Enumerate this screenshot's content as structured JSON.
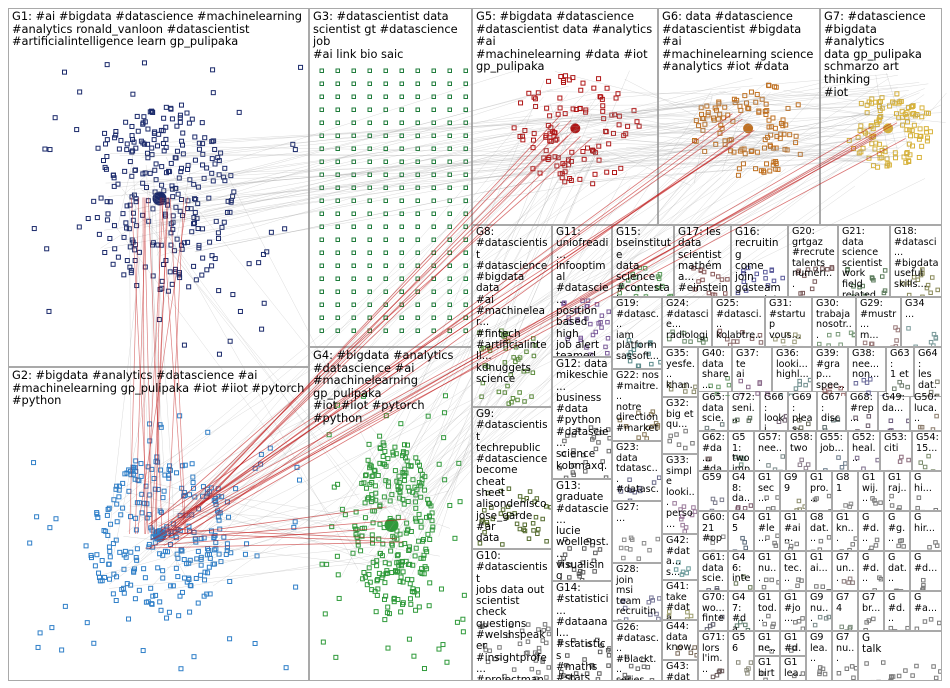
{
  "groups": [
    {
      "id": "G1",
      "label": "G1: #ai #bigdata #datascience #machinelearning\n#analytics ronald_vanloon #datascientist\n#artificialintelligence learn gp_pulipaka",
      "color": "#1b2a6b"
    },
    {
      "id": "G2",
      "label": "G2: #bigdata #analytics #datascience #ai\n#machinelearning gp_pulipaka #iot #iiot #pytorch\n#python",
      "color": "#2f7fc8"
    },
    {
      "id": "G3",
      "label": "G3: #datascientist data\nscientist gt #datascience job\n#ai link bio saic",
      "color": "#1e7b3a"
    },
    {
      "id": "G4",
      "label": "G4: #bigdata #analytics\n#datascience #ai\n#machinelearning gp_pulipaka\n#iot #iiot #pytorch #python",
      "color": "#2f9a3a"
    },
    {
      "id": "G5",
      "label": "G5: #bigdata #datascience\n#datascientist data #analytics #ai\n#machinelearning #data #iot\ngp_pulipaka",
      "color": "#b01515"
    },
    {
      "id": "G6",
      "label": "G6: data #datascience\n#datascientist #bigdata #ai\n#machinelearning science\n#analytics #iot #data",
      "color": "#c07020"
    },
    {
      "id": "G7",
      "label": "G7: #datascience\n#bigdata #analytics\ndata gp_pulipaka\nschmarzo art thinking\n#iot",
      "color": "#d7b23a"
    },
    {
      "id": "G8",
      "label": "G8:\n#datascientist\n#datascience\n#bigdata data\n#ai\n#machinelear...\n#fintech\n#artificialintell...\nkdnuggets\nscience",
      "color": "#5a8a3a"
    },
    {
      "id": "G9",
      "label": "G9:\n#datascientist\ntechrepublic\n#datascience\nbecome cheat\nsheet\nalisondenisco\njose_garde #ar\ndata",
      "color": "#556b2f"
    },
    {
      "id": "G10",
      "label": "G10:\n#datascientist\njobs data out\nscientist check\nquestions\n#welshspeaker\n#insightprofe...\n#projectmana...",
      "color": "#7a7a7a"
    },
    {
      "id": "G11",
      "label": "G11:\nuniofreadi...\ninfooptimal\n#datascie...\nposition\nbased high\njob alert\nteamed up",
      "color": "#7a5a9a"
    },
    {
      "id": "G12",
      "label": "G12: data\nmikeschie...\nbusiness\n#data\n#python\n#datascie...\nscience\nkobmaxq...",
      "color": "#6a6a6a"
    },
    {
      "id": "G13",
      "label": "G13:\ngraduate\n#datascie...\nlucie\nwoellenst...\nvisualising\nbritain's...",
      "color": "#5a5a5a"
    },
    {
      "id": "G14",
      "label": "G14:\n#statistici...\n#dataanal...\n#statistics\n#maths\n#stats\n#econom...",
      "color": "#5a5a5a"
    },
    {
      "id": "G15",
      "label": "G15:\nbseinstitute\ndata\nscience\n#contestal...",
      "color": "#5a9a5a"
    },
    {
      "id": "G16",
      "label": "G16:\nrecruiting\ncome join\ngdsteam\nassociate...",
      "color": "#5a5a9a"
    },
    {
      "id": "G17",
      "label": "G17: les\ndata\nscientist\nmathéma...\n#einstein...",
      "color": "#8a5a5a"
    },
    {
      "id": "G18",
      "label": "G18:\n#datasci...\n#bigdata\nuseful\nskills...",
      "color": "#8a8a5a"
    },
    {
      "id": "G19",
      "label": "G19:\n#datasc...\niam\nplatform\nsassoft...",
      "color": "#5a8a8a"
    },
    {
      "id": "G20",
      "label": "G20:\ngrtgaz\n#recrute\ntalents\nnuméri...",
      "color": "#7a5a5a"
    },
    {
      "id": "G21",
      "label": "G21: data\nscience\nscientist\nwork field\nrelated...",
      "color": "#5a7a5a"
    },
    {
      "id": "G22",
      "label": "G22: nos\n#maitre...\nnotre\ndirection\n#market...",
      "color": "#8a7a5a"
    },
    {
      "id": "G23",
      "label": "G23:\ndata\ntdatasc...\n#datasc...",
      "color": "#6a6a8a"
    },
    {
      "id": "G24",
      "label": "G24:\n#datascie...\nradiologi...",
      "color": "#6a8a6a"
    },
    {
      "id": "G25",
      "label": "G25:\n#datasci...\nkolabtre...",
      "color": "#8a6a6a"
    },
    {
      "id": "G26",
      "label": "G26:\n#datasc...\n#blackt...\nseries...",
      "color": "#6a6a6a"
    },
    {
      "id": "G27",
      "label": "G27:\n...",
      "color": "#8a8a8a"
    },
    {
      "id": "G28",
      "label": "G28: join\nmsi team\nrecruiting\nphd...",
      "color": "#7a7a9a"
    },
    {
      "id": "G29",
      "label": "G29:\n#mustr...\nm...",
      "color": "#9a7a7a"
    },
    {
      "id": "G30",
      "label": "G30:\ntrabaja\nnosotr...",
      "color": "#7a9a7a"
    },
    {
      "id": "G31",
      "label": "G31:\n#startup\nvous...",
      "color": "#9a9a7a"
    },
    {
      "id": "G32",
      "label": "G32:\nbig et\nqu...",
      "color": "#7a7a7a"
    },
    {
      "id": "G33",
      "label": "G33:\nsimple\nlooki...\nperso...",
      "color": "#9a7a9a"
    },
    {
      "id": "G34",
      "label": "G34\n...",
      "color": "#7a9a9a"
    },
    {
      "id": "G35",
      "label": "G35:\nyesfe...\nkhan...",
      "color": "#8a8a6a"
    },
    {
      "id": "G36",
      "label": "G36:\nlooki...\nhighl...",
      "color": "#6a8a8a"
    },
    {
      "id": "G37",
      "label": "G37:\nte\nai",
      "color": "#8a6a8a"
    },
    {
      "id": "G38",
      "label": "G38:\nnee...\nnon...",
      "color": "#6a6a9a"
    },
    {
      "id": "G39",
      "label": "G39:\n#grap...\nspee...",
      "color": "#9a6a6a"
    },
    {
      "id": "G40",
      "label": "G40:\ndata\nshare...",
      "color": "#6a9a6a"
    },
    {
      "id": "G41",
      "label": "G41:\ntake\n#data...",
      "color": "#9a9a6a"
    },
    {
      "id": "G42",
      "label": "G42:\n#data...\ns...",
      "color": "#6a9a9a"
    },
    {
      "id": "G43",
      "label": "G43:\n#data...\ngrowt...",
      "color": "#9a6a9a"
    },
    {
      "id": "G44",
      "label": "G44:\ndata\nknow...",
      "color": "#7a6a5a"
    },
    {
      "id": "G45",
      "label": "G45",
      "color": "#5a6a7a"
    },
    {
      "id": "G46",
      "label": "G46:\ninte...\npls...",
      "color": "#6a7a5a"
    },
    {
      "id": "G47",
      "label": "G47:\n#da...\nrecl...",
      "color": "#5a7a6a"
    },
    {
      "id": "G48",
      "label": "G48:\nda...\nsci...",
      "color": "#7a5a6a"
    },
    {
      "id": "G49",
      "label": "G49:\nda...",
      "color": "#6a5a7a"
    },
    {
      "id": "G50",
      "label": "G50:\nluca...",
      "color": "#8a7a6a"
    },
    {
      "id": "G51",
      "label": "G51:\ntwo\nimp...",
      "color": "#6a8a7a"
    },
    {
      "id": "G52",
      "label": "G52:\nheal...",
      "color": "#7a6a8a"
    },
    {
      "id": "G53",
      "label": "G53:\nciti",
      "color": "#8a6a7a"
    },
    {
      "id": "G54",
      "label": "G54:\n15...",
      "color": "#7a8a6a"
    },
    {
      "id": "G55",
      "label": "G55:\njob...",
      "color": "#6a7a8a"
    },
    {
      "id": "G56",
      "label": "G56",
      "color": "#8a8a7a"
    },
    {
      "id": "G57",
      "label": "G57:\nnee...",
      "color": "#7a8a8a"
    },
    {
      "id": "G58",
      "label": "G58:\ntwo",
      "color": "#8a7a8a"
    },
    {
      "id": "G59",
      "label": "G59",
      "color": "#7a7a8a"
    },
    {
      "id": "G60",
      "label": "G60:\n21\n#op...",
      "color": "#8a8a8a"
    },
    {
      "id": "G61",
      "label": "G61:\ndata\nscie...",
      "color": "#6a6a7a"
    },
    {
      "id": "G62",
      "label": "G62:\n#da...\n#da...",
      "color": "#7a6a6a"
    },
    {
      "id": "G63",
      "label": "G63:\n1 et",
      "color": "#6a7a6a"
    },
    {
      "id": "G64",
      "label": "G64:\nles\ndat...",
      "color": "#7a7a6a"
    },
    {
      "id": "G65",
      "label": "G65:\ndata\nscie...",
      "color": "#6a7a7a"
    },
    {
      "id": "G66",
      "label": "G66:\nlooki...",
      "color": "#7a6a7a"
    },
    {
      "id": "G67",
      "label": "G67:\ndisc...",
      "color": "#5a6a6a"
    },
    {
      "id": "G68",
      "label": "G68:\n#rep...",
      "color": "#6a5a6a"
    },
    {
      "id": "G69",
      "label": "G69:\npleas...",
      "color": "#6a6a5a"
    },
    {
      "id": "G70",
      "label": "G70:\nwo...\nfinte...",
      "color": "#5a5a6a"
    },
    {
      "id": "G71",
      "label": "G71:\nlors\nl'im...",
      "color": "#6a5a5a"
    },
    {
      "id": "G72",
      "label": "G72:\nseni...",
      "color": "#5a6a5a"
    },
    {
      "id": "G74",
      "label": "G74",
      "color": "#7a8a7a"
    },
    {
      "id": "G7x",
      "label": "G7\nun...",
      "color": "#8a7a7a"
    },
    {
      "id": "G8x",
      "label": "G8\ndat...",
      "color": "#7a7a7a"
    },
    {
      "id": "G81",
      "label": "G81",
      "color": "#8a8a8a"
    },
    {
      "id": "G9x",
      "label": "G9\nnu...",
      "color": "#7a8a8a"
    },
    {
      "id": "G99",
      "label": "G99",
      "color": "#8a8a6a"
    },
    {
      "id": "S01",
      "label": "G1\nsec...",
      "color": "#7a7a7a"
    },
    {
      "id": "S02",
      "label": "G1\npro...",
      "color": "#7a7a7a"
    },
    {
      "id": "S03",
      "label": "G1\nwij...",
      "color": "#7a7a7a"
    },
    {
      "id": "S04",
      "label": "G1\nraj...",
      "color": "#7a7a7a"
    },
    {
      "id": "S05",
      "label": "G1\n#ai...",
      "color": "#7a7a7a"
    },
    {
      "id": "S06",
      "label": "G1\nkn...",
      "color": "#7a7a7a"
    },
    {
      "id": "S07",
      "label": "G1\n#le...",
      "color": "#7a7a7a"
    },
    {
      "id": "S08",
      "label": "G1\nnu...",
      "color": "#7a7a7a"
    },
    {
      "id": "S09",
      "label": "G1\ntec...",
      "color": "#7a7a7a"
    },
    {
      "id": "S10",
      "label": "G1\nai...",
      "color": "#7a7a7a"
    },
    {
      "id": "S11",
      "label": "G1\n#jo...",
      "color": "#7a7a7a"
    },
    {
      "id": "S12",
      "label": "G1\ntod...",
      "color": "#7a7a7a"
    },
    {
      "id": "S13",
      "label": "G1\n#d...",
      "color": "#7a7a7a"
    },
    {
      "id": "S14",
      "label": "G1\nne...",
      "color": "#7a7a7a"
    },
    {
      "id": "S15",
      "label": "G1\nlea...",
      "color": "#7a7a7a"
    },
    {
      "id": "S16",
      "label": "G1\nbirt...",
      "color": "#7a7a7a"
    },
    {
      "id": "S17",
      "label": "G9\nlea...",
      "color": "#7a7a7a"
    },
    {
      "id": "S18",
      "label": "G7\nbr...",
      "color": "#7a7a7a"
    },
    {
      "id": "S19",
      "label": "G7\nnu...",
      "color": "#7a7a7a"
    },
    {
      "id": "S20",
      "label": "G\n#d...",
      "color": "#7a7a7a"
    },
    {
      "id": "S21",
      "label": "G\n#a...",
      "color": "#7a7a7a"
    },
    {
      "id": "S22",
      "label": "G\ntalk",
      "color": "#7a7a7a"
    },
    {
      "id": "S23",
      "label": "G\n#g...",
      "color": "#7a7a7a"
    },
    {
      "id": "S24",
      "label": "G\nhir...",
      "color": "#7a7a7a"
    },
    {
      "id": "S25",
      "label": "G\n#d...",
      "color": "#7a7a7a"
    },
    {
      "id": "S26",
      "label": "G\ndat...",
      "color": "#7a7a7a"
    },
    {
      "id": "S27",
      "label": "G\n#d...",
      "color": "#7a7a7a"
    },
    {
      "id": "S28",
      "label": "G\nhi...",
      "color": "#7a7a7a"
    },
    {
      "id": "S29",
      "label": "G\n#d...",
      "color": "#7a7a7a"
    }
  ]
}
